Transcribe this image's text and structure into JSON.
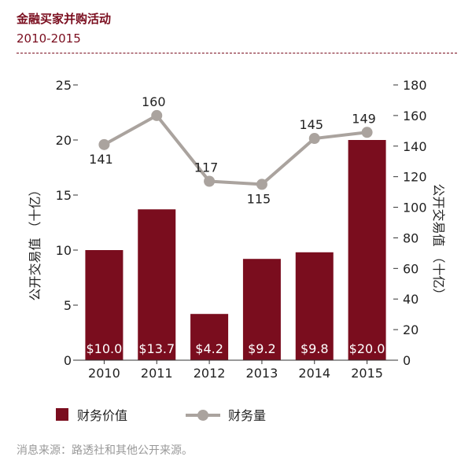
{
  "header": {
    "title": "金融买家并购活动",
    "subtitle": "2010-2015"
  },
  "footer": {
    "source": "消息来源：路透社和其他公开来源。"
  },
  "colors": {
    "bar": "#7a0d1e",
    "line": "#aaa39e",
    "text": "#222222"
  },
  "chart_data": {
    "type": "bar+line",
    "categories": [
      "2010",
      "2011",
      "2012",
      "2013",
      "2014",
      "2015"
    ],
    "series": [
      {
        "name": "财务价值",
        "type": "bar",
        "axis": "left",
        "values": [
          10.0,
          13.7,
          4.2,
          9.2,
          9.8,
          20.0
        ],
        "labels": [
          "$10.0",
          "$13.7",
          "$4.2",
          "$9.2",
          "$9.8",
          "$20.0"
        ]
      },
      {
        "name": "财务量",
        "type": "line",
        "axis": "right",
        "values": [
          141,
          160,
          117,
          115,
          145,
          149
        ],
        "labels": [
          "141",
          "160",
          "117",
          "115",
          "145",
          "149"
        ]
      }
    ],
    "y_left": {
      "label": "公开交易值 （十亿）",
      "ylim": [
        0,
        25
      ],
      "ticks": [
        0,
        5,
        10,
        15,
        20,
        25
      ]
    },
    "y_right": {
      "label": "公开交易值 （十亿）",
      "ylim": [
        0,
        180
      ],
      "ticks": [
        0,
        20,
        40,
        60,
        80,
        100,
        120,
        140,
        160,
        180
      ]
    },
    "legend": {
      "placement": "bottom",
      "bar_label": "财务价值",
      "line_label": "财务量"
    }
  }
}
